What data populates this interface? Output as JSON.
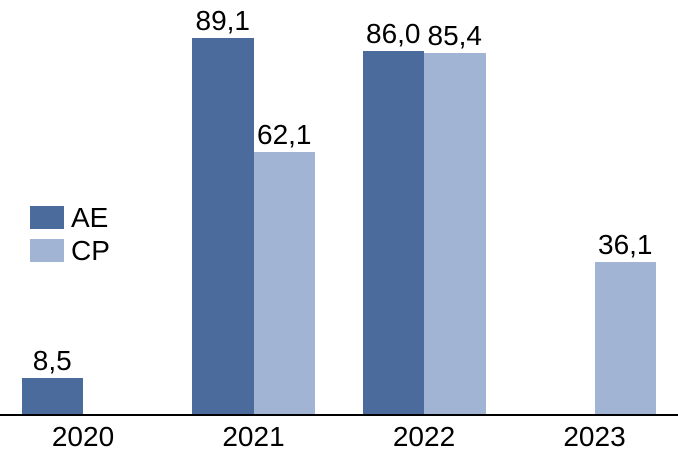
{
  "chart_data": {
    "type": "bar",
    "categories": [
      "2020",
      "2021",
      "2022",
      "2023"
    ],
    "series": [
      {
        "name": "AE",
        "color": "#4A6B9C",
        "values": [
          8.5,
          89.1,
          86.0,
          null
        ],
        "value_labels": [
          "8,5",
          "89,1",
          "86,0",
          null
        ]
      },
      {
        "name": "CP",
        "color": "#A2B4D4",
        "values": [
          null,
          62.1,
          85.4,
          36.1
        ],
        "value_labels": [
          null,
          "62,1",
          "85,4",
          "36,1"
        ]
      }
    ],
    "title": "",
    "xlabel": "",
    "ylabel": "",
    "ylim": [
      0,
      98
    ],
    "grid": false,
    "y_axis_visible": false,
    "value_labels_visible": true,
    "decimal_separator": ",",
    "legend_position": "middle-left"
  },
  "legend": {
    "items": [
      {
        "label": "AE",
        "color": "#4A6B9C"
      },
      {
        "label": "CP",
        "color": "#A2B4D4"
      }
    ]
  },
  "colors": {
    "background": "#ffffff",
    "axis": "#000000",
    "text": "#000000"
  }
}
